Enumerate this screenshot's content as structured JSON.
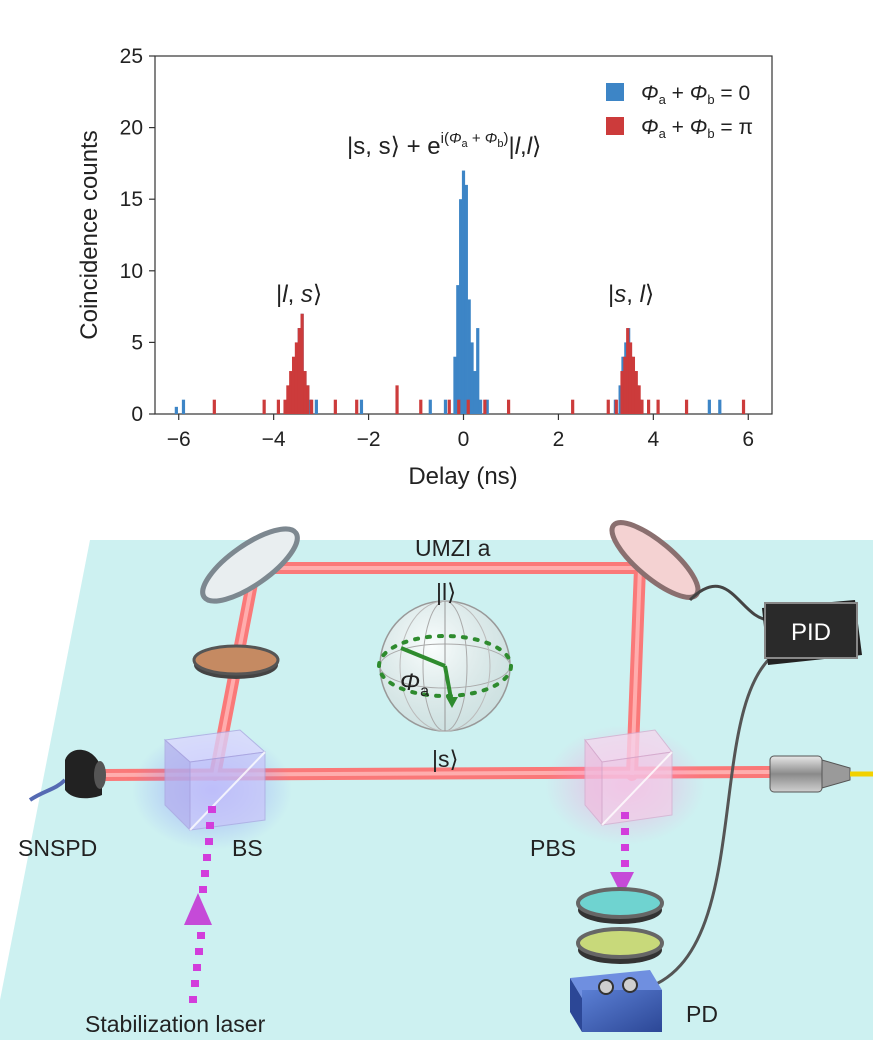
{
  "chart_data": {
    "type": "bar",
    "xlabel": "Delay (ns)",
    "ylabel": "Coincidence counts",
    "xlim": [
      -6.5,
      6.5
    ],
    "ylim": [
      0,
      25
    ],
    "x_ticks": [
      "−6",
      "−4",
      "−2",
      "0",
      "2",
      "4",
      "6"
    ],
    "y_ticks": [
      "0",
      "5",
      "10",
      "15",
      "20",
      "25"
    ],
    "legend_position": "top-right",
    "legend": [
      "Φa + Φb = 0",
      "Φa + Φb = π"
    ],
    "colors": {
      "phase_0": "#3d85c6",
      "phase_pi": "#cc3b3b"
    },
    "annotations": [
      "|s, s⟩ + e^{i(Φa + Φb)}|l,l⟩",
      "|l, s⟩",
      "|s, l⟩"
    ],
    "series": [
      {
        "key": "phase_0",
        "x": [
          -6.05,
          -5.9,
          -3.7,
          -3.64,
          -3.58,
          -3.52,
          -3.46,
          -3.4,
          -3.34,
          -3.28,
          -3.22,
          -3.1,
          -2.15,
          -0.7,
          -0.38,
          -0.18,
          -0.12,
          -0.06,
          0.0,
          0.06,
          0.12,
          0.18,
          0.24,
          0.3,
          0.36,
          0.5,
          3.2,
          3.3,
          3.36,
          3.42,
          3.48,
          3.54,
          3.6,
          3.66,
          3.72,
          5.18,
          5.4
        ],
        "values": [
          0.5,
          1,
          1,
          2,
          3,
          4,
          6,
          7,
          3,
          2,
          1,
          1,
          1,
          1,
          1,
          4,
          9,
          15,
          17,
          16,
          8,
          5,
          3,
          6,
          1,
          1,
          1,
          2,
          4,
          5,
          6,
          4,
          3,
          2,
          1,
          1,
          1
        ]
      },
      {
        "key": "phase_pi",
        "x": [
          -5.25,
          -4.2,
          -3.9,
          -3.76,
          -3.7,
          -3.64,
          -3.58,
          -3.52,
          -3.46,
          -3.4,
          -3.34,
          -3.28,
          -3.2,
          -2.7,
          -2.25,
          -1.4,
          -0.9,
          -0.3,
          -0.1,
          0.1,
          0.45,
          0.95,
          2.3,
          3.05,
          3.22,
          3.34,
          3.4,
          3.46,
          3.52,
          3.58,
          3.64,
          3.7,
          3.76,
          3.9,
          4.1,
          4.7,
          5.9
        ],
        "values": [
          1,
          1,
          1,
          1,
          2,
          3,
          4,
          5,
          6,
          7,
          3,
          2,
          1,
          1,
          1,
          2,
          1,
          1,
          1,
          1,
          1,
          1,
          1,
          1,
          1,
          3,
          4,
          6,
          5,
          4,
          3,
          2,
          1,
          1,
          1,
          1,
          1
        ]
      }
    ]
  },
  "diagram": {
    "labels": {
      "umzi": "UMZI a",
      "long_state": "|l⟩",
      "short_state": "|s⟩",
      "phase": "Φ",
      "phase_sub": "a",
      "pid": "PID",
      "snspd": "SNSPD",
      "bs": "BS",
      "pbs": "PBS",
      "pd": "PD",
      "laser": "Stabilization laser"
    }
  }
}
